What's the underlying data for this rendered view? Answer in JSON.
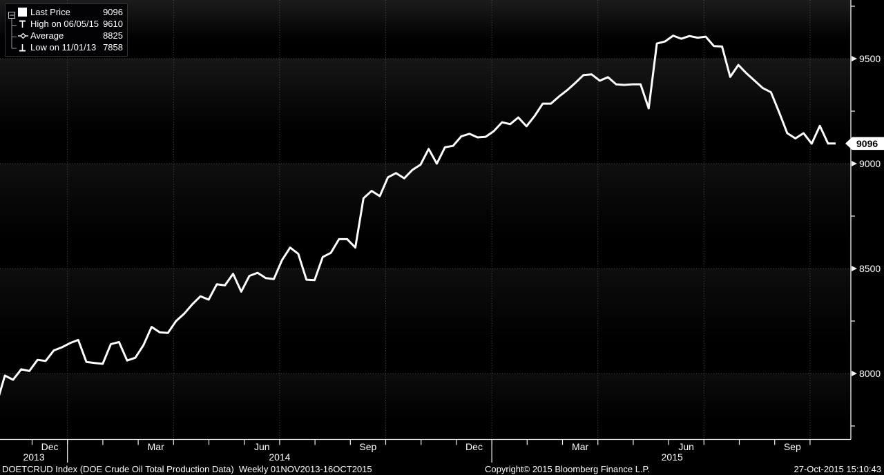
{
  "legend": {
    "items": [
      {
        "icon": "series-swatch-icon",
        "label": "Last Price",
        "value": "9096"
      },
      {
        "icon": "high-marker-icon",
        "label": "High on 06/05/15",
        "value": "9610"
      },
      {
        "icon": "average-marker-icon",
        "label": "Average",
        "value": "8825"
      },
      {
        "icon": "low-marker-icon",
        "label": "Low on 11/01/13",
        "value": "7858"
      }
    ]
  },
  "y_axis": {
    "major_ticks": [
      {
        "label": "9500",
        "value": 9500
      },
      {
        "label": "9000",
        "value": 9000
      },
      {
        "label": "8500",
        "value": 8500
      },
      {
        "label": "8000",
        "value": 8000
      }
    ],
    "minor_tick_values": [
      9750,
      9250,
      8750,
      8250,
      7750
    ],
    "last_price": {
      "label": "9096",
      "value": 9096
    }
  },
  "x_axis": {
    "month_labels": [
      {
        "label": "Dec",
        "month_index": 1
      },
      {
        "label": "Mar",
        "month_index": 4
      },
      {
        "label": "Jun",
        "month_index": 7
      },
      {
        "label": "Sep",
        "month_index": 10
      },
      {
        "label": "Dec",
        "month_index": 13
      },
      {
        "label": "Mar",
        "month_index": 16
      },
      {
        "label": "Jun",
        "month_index": 19
      },
      {
        "label": "Sep",
        "month_index": 22
      }
    ],
    "year_labels": [
      {
        "label": "2013",
        "center_month": 1.05
      },
      {
        "label": "2014",
        "center_month": 8.0
      },
      {
        "label": "2015",
        "center_month": 19.1
      }
    ],
    "year_separator_months": [
      2,
      14
    ],
    "month_tick_range": [
      1,
      23
    ],
    "quarter_gridline_months": [
      2,
      5,
      8,
      11,
      14,
      17,
      20,
      23
    ]
  },
  "footer": {
    "left": "DOETCRUD Index (DOE Crude Oil Total Production Data)  Weekly 01NOV2013-16OCT2015",
    "center": "Copyright© 2015 Bloomberg Finance L.P.",
    "right": "27-Oct-2015 15:10:43"
  },
  "colors": {
    "background": "#000000",
    "line": "#ffffff",
    "grid": "#55555a",
    "axis": "#f2f2f2",
    "text": "#ffffff",
    "tag_bg": "#ffffff",
    "tag_text": "#000000"
  },
  "chart_data": {
    "type": "line",
    "title": "DOETCRUD Index (DOE Crude Oil Total Production Data)",
    "frequency": "Weekly",
    "period": "01NOV2013-16OCT2015",
    "x_start": "2013-11-01",
    "x_end": "2015-10-16",
    "x_step": "1 week",
    "ylim": [
      7650,
      9800
    ],
    "y_gridlines": [
      9500,
      9000,
      8500,
      8000
    ],
    "x_gridlines_at": "calendar quarter starts",
    "legend_position": "top-left",
    "stats": {
      "last": 9096,
      "high": 9610,
      "high_date": "06/05/15",
      "average": 8825,
      "low": 7858,
      "low_date": "11/01/13"
    },
    "series": [
      {
        "name": "Last Price",
        "color": "#ffffff",
        "values": [
          7858,
          7990,
          7970,
          8020,
          8012,
          8065,
          8060,
          8110,
          8125,
          8145,
          8160,
          8055,
          8050,
          8046,
          8140,
          8150,
          8062,
          8075,
          8135,
          8222,
          8196,
          8193,
          8250,
          8285,
          8330,
          8368,
          8352,
          8425,
          8420,
          8475,
          8390,
          8465,
          8480,
          8455,
          8450,
          8540,
          8600,
          8570,
          8447,
          8445,
          8555,
          8575,
          8640,
          8640,
          8600,
          8835,
          8870,
          8845,
          8935,
          8955,
          8930,
          8970,
          8995,
          9070,
          9000,
          9078,
          9085,
          9130,
          9142,
          9125,
          9128,
          9155,
          9197,
          9188,
          9220,
          9178,
          9227,
          9286,
          9286,
          9320,
          9350,
          9385,
          9422,
          9425,
          9395,
          9412,
          9378,
          9375,
          9378,
          9378,
          9263,
          9572,
          9582,
          9610,
          9595,
          9608,
          9600,
          9605,
          9560,
          9558,
          9413,
          9470,
          9430,
          9395,
          9360,
          9340,
          9245,
          9145,
          9120,
          9145,
          9095,
          9180,
          9096
        ]
      }
    ]
  }
}
